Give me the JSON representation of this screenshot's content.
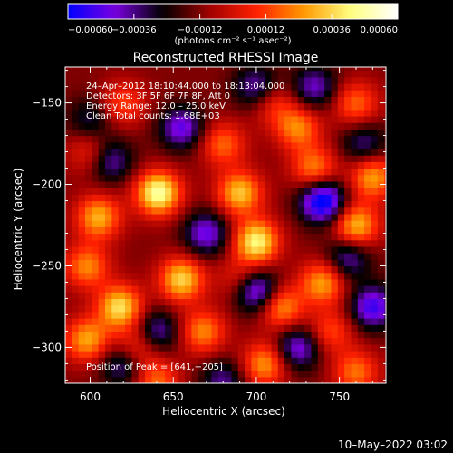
{
  "chart_data": {
    "type": "heatmap",
    "title": "Reconstructed RHESSI Image",
    "xlabel": "Heliocentric X (arcsec)",
    "ylabel": "Heliocentric Y (arcsec)",
    "xlim": [
      585,
      778
    ],
    "ylim": [
      -322,
      -128
    ],
    "x_ticks": [
      600,
      650,
      700,
      750
    ],
    "y_ticks": [
      -300,
      -250,
      -200,
      -150
    ],
    "x_tick_labels": [
      "600",
      "650",
      "700",
      "750"
    ],
    "y_tick_labels": [
      "−300",
      "−250",
      "−200",
      "−150"
    ],
    "colorbar": {
      "range": [
        -0.0006,
        0.0006
      ],
      "ticks": [
        -0.0006,
        -0.00036,
        -0.00012,
        0.00012,
        0.00036,
        0.0006
      ],
      "tick_labels": [
        "−0.00060",
        "−0.00036",
        "−0.00012",
        "0.00012",
        "0.00036",
        "0.00060"
      ],
      "unit_label": "(photons cm⁻² s⁻¹ asec⁻²)",
      "colors": [
        "#0000ff",
        "#7a00e0",
        "#000000",
        "#a00000",
        "#ff2000",
        "#ff9800",
        "#ffff80",
        "#ffffff"
      ]
    },
    "annotations": [
      "24–Apr–2012 18:10:44.000 to 18:13:04.000",
      "Detectors: 3F 5F 6F 7F 8F, Att 0",
      "Energy Range: 12.0 – 25.0 keV",
      "Clean      Total counts: 1.68E+03"
    ],
    "peak_label": "Position of Peak = [641,−205]",
    "peak": [
      641,
      -205
    ],
    "blobs": [
      {
        "x": 641,
        "y": -205,
        "v": 0.0006
      },
      {
        "x": 618,
        "y": -275,
        "v": 0.0005
      },
      {
        "x": 655,
        "y": -258,
        "v": 0.00048
      },
      {
        "x": 700,
        "y": -235,
        "v": 0.00055
      },
      {
        "x": 690,
        "y": -205,
        "v": 0.00045
      },
      {
        "x": 605,
        "y": -220,
        "v": 0.00042
      },
      {
        "x": 598,
        "y": -295,
        "v": 0.0004
      },
      {
        "x": 715,
        "y": -275,
        "v": 0.00038
      },
      {
        "x": 740,
        "y": -260,
        "v": 0.0004
      },
      {
        "x": 760,
        "y": -225,
        "v": 0.00045
      },
      {
        "x": 735,
        "y": -190,
        "v": 0.00035
      },
      {
        "x": 770,
        "y": -195,
        "v": 0.0004
      },
      {
        "x": 668,
        "y": -290,
        "v": 0.00035
      },
      {
        "x": 705,
        "y": -310,
        "v": 0.00038
      },
      {
        "x": 760,
        "y": -315,
        "v": 0.00032
      },
      {
        "x": 640,
        "y": -320,
        "v": 0.0003
      },
      {
        "x": 725,
        "y": -165,
        "v": 0.00035
      },
      {
        "x": 680,
        "y": -175,
        "v": 0.0003
      },
      {
        "x": 600,
        "y": -180,
        "v": 0.00022
      },
      {
        "x": 620,
        "y": -150,
        "v": 0.00025
      },
      {
        "x": 760,
        "y": -150,
        "v": 0.0003
      },
      {
        "x": 598,
        "y": -250,
        "v": 0.00035
      },
      {
        "x": 628,
        "y": -300,
        "v": 0.00028
      },
      {
        "x": 745,
        "y": -290,
        "v": 0.00025
      },
      {
        "x": 710,
        "y": -150,
        "v": 0.00022
      },
      {
        "x": 690,
        "y": -258,
        "v": 0.0002
      },
      {
        "x": 700,
        "y": -265,
        "v": -0.00045
      },
      {
        "x": 740,
        "y": -210,
        "v": -0.00055
      },
      {
        "x": 670,
        "y": -230,
        "v": -0.00035
      },
      {
        "x": 612,
        "y": -185,
        "v": -0.0003
      },
      {
        "x": 655,
        "y": -165,
        "v": -0.00035
      },
      {
        "x": 770,
        "y": -275,
        "v": -0.0004
      },
      {
        "x": 725,
        "y": -300,
        "v": -0.00035
      },
      {
        "x": 640,
        "y": -290,
        "v": -0.0003
      },
      {
        "x": 700,
        "y": -140,
        "v": -0.0003
      },
      {
        "x": 755,
        "y": -245,
        "v": -0.0003
      },
      {
        "x": 620,
        "y": -310,
        "v": -0.0003
      },
      {
        "x": 680,
        "y": -320,
        "v": -0.00025
      },
      {
        "x": 735,
        "y": -140,
        "v": -0.0003
      },
      {
        "x": 600,
        "y": -160,
        "v": -0.0002
      },
      {
        "x": 765,
        "y": -175,
        "v": -0.00025
      }
    ],
    "grid_step": 4
  },
  "footer": {
    "timestamp": "10–May–2022 03:02"
  }
}
